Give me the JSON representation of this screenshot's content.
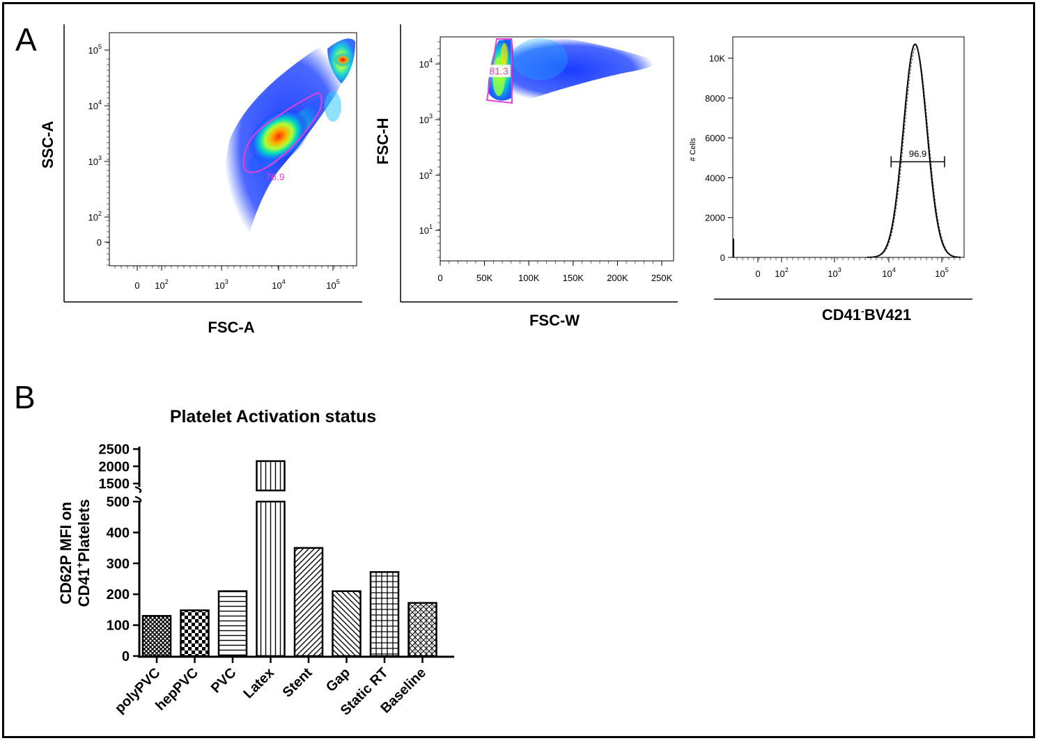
{
  "panels": {
    "a_label": "A",
    "b_label": "B"
  },
  "chart_data": [
    {
      "type": "scatter",
      "panel": "A1",
      "xlabel": "FSC-A",
      "ylabel": "SSC-A",
      "x_ticks": [
        "0",
        "10^2",
        "10^3",
        "10^4",
        "10^5"
      ],
      "y_ticks": [
        "0",
        "10^2",
        "10^3",
        "10^4",
        "10^5"
      ],
      "x_scale": "log",
      "y_scale": "log",
      "gate_value": "76.9",
      "gate_color": "#e83fd3"
    },
    {
      "type": "scatter",
      "panel": "A2",
      "xlabel": "FSC-W",
      "ylabel": "FSC-H",
      "x_ticks": [
        "0",
        "50K",
        "100K",
        "150K",
        "200K",
        "250K"
      ],
      "y_ticks": [
        "10^1",
        "10^2",
        "10^3",
        "10^4"
      ],
      "y_scale": "log",
      "gate_value": "81.3",
      "gate_color": "#e83fd3"
    },
    {
      "type": "line",
      "panel": "A3",
      "xlabel": "CD41-BV421",
      "ylabel": "# Cells",
      "x_ticks": [
        "0",
        "10^2",
        "10^3",
        "10^4",
        "10^5"
      ],
      "y_ticks": [
        "0",
        "2000",
        "4000",
        "6000",
        "8000",
        "10K"
      ],
      "x_scale": "log",
      "ylim": [
        0,
        11000
      ],
      "peak_log10": 4.5,
      "peak_count": 10700,
      "gate_value": "96.9",
      "gate_range_log10": [
        4.05,
        5.05
      ],
      "gate_level": 4800
    },
    {
      "type": "bar",
      "panel": "B",
      "title": "Platelet Activation status",
      "ylabel": "CD62P MFI on CD41+Platelets",
      "categories": [
        "polyPVC",
        "hepPVC",
        "PVC",
        "Latex",
        "Stent",
        "Gap",
        "Static RT",
        "Baseline"
      ],
      "values": [
        130,
        148,
        210,
        2150,
        350,
        210,
        272,
        172
      ],
      "lower_ticks": [
        "0",
        "100",
        "200",
        "300",
        "400",
        "500"
      ],
      "upper_ticks": [
        "1500",
        "2000",
        "2500"
      ],
      "ylim_lower": [
        0,
        500
      ],
      "ylim_upper": [
        1400,
        2550
      ],
      "patterns": [
        "crosshatch-fine",
        "checker",
        "horizontal",
        "vertical",
        "diagonal-up",
        "diagonal-down",
        "grid",
        "dense-diagonal"
      ]
    }
  ]
}
